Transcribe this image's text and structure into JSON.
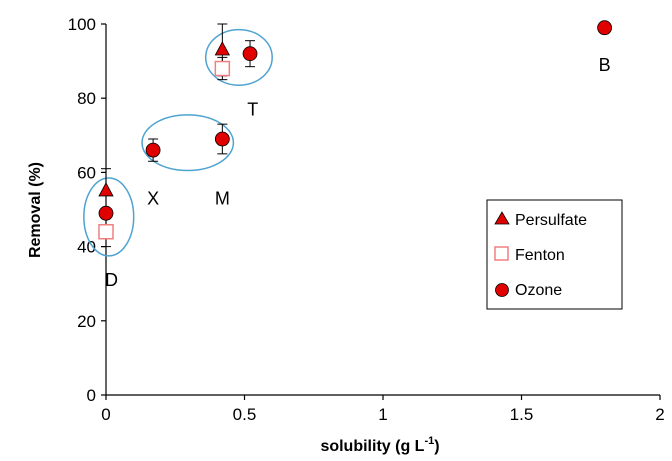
{
  "chart_data": {
    "type": "scatter",
    "title": "",
    "xlabel": "solubility  (g L",
    "xlabel_sup": "-1",
    "xlabel_end": ")",
    "ylabel": "Removal  (%)",
    "xlim": [
      0,
      2
    ],
    "ylim": [
      0,
      100
    ],
    "x_ticks": [
      0,
      0.5,
      1,
      1.5,
      2
    ],
    "x_tick_labels": [
      "0",
      "0.5",
      "1",
      "1.5",
      "2"
    ],
    "y_ticks": [
      0,
      20,
      40,
      60,
      80,
      100
    ],
    "y_tick_labels": [
      "0",
      "20",
      "40",
      "60",
      "80",
      "100"
    ],
    "grid": false,
    "legend_position": "right",
    "series": [
      {
        "name": "Persulfate",
        "marker": "triangle",
        "color": "#e00000",
        "points": [
          {
            "x": 0.0,
            "y": 55,
            "err": 6
          },
          {
            "x": 0.42,
            "y": 93,
            "err": 7
          }
        ]
      },
      {
        "name": "Fenton",
        "marker": "square-open",
        "color": "#f08080",
        "points": [
          {
            "x": 0.0,
            "y": 44,
            "err": 4
          },
          {
            "x": 0.42,
            "y": 88,
            "err": 3
          }
        ]
      },
      {
        "name": "Ozone",
        "marker": "circle",
        "color": "#e00000",
        "points": [
          {
            "x": 0.0,
            "y": 49,
            "err": 0
          },
          {
            "x": 0.17,
            "y": 66,
            "err": 3
          },
          {
            "x": 0.42,
            "y": 69,
            "err": 4
          },
          {
            "x": 0.52,
            "y": 92,
            "err": 3.5
          },
          {
            "x": 1.8,
            "y": 99,
            "err": 0
          }
        ]
      }
    ],
    "annotations": [
      {
        "text": "D",
        "x": 0.02,
        "y": 31
      },
      {
        "text": "X",
        "x": 0.17,
        "y": 53
      },
      {
        "text": "M",
        "x": 0.42,
        "y": 53
      },
      {
        "text": "T",
        "x": 0.53,
        "y": 77
      },
      {
        "text": "B",
        "x": 1.8,
        "y": 89
      }
    ],
    "groups": [
      {
        "cx": 0.01,
        "cy": 48,
        "rx": 0.09,
        "ry": 10.5
      },
      {
        "cx": 0.295,
        "cy": 68,
        "rx": 0.165,
        "ry": 7.5
      },
      {
        "cx": 0.48,
        "cy": 91,
        "rx": 0.12,
        "ry": 7.5
      }
    ],
    "group_color": "#4fa3d1"
  }
}
